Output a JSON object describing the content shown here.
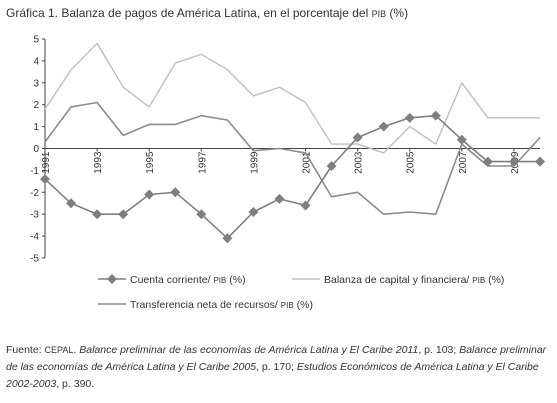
{
  "title": {
    "prefix": "Gráfica 1. Balanza de pagos de América Latina, en el porcentaje del ",
    "pib": "PIB",
    "suffix": " (%)"
  },
  "source": {
    "p1": "Fuente: ",
    "p2": "CEPAL",
    "p3": ". ",
    "p4": "Balance preliminar de las economías de América Latina y El Caribe 2011",
    "p5": ", p. 103;  ",
    "p6": "Balance preliminar de las economías de América Latina y El Caribe 2005",
    "p7": ", p. 170; ",
    "p8": "Estudios Económicos de América Latina y El Caribe 2002-2003",
    "p9": ", p. 390."
  },
  "colors": {
    "cuenta": "#7f7f7f",
    "capital": "#bfbfbf",
    "transferencia": "#8c8c8c",
    "axis": "#444444"
  },
  "chart_data": {
    "type": "line",
    "title": "Gráfica 1. Balanza de pagos de América Latina, en el porcentaje del PIB (%)",
    "xlabel": "",
    "ylabel": "",
    "ylim": [
      -5,
      5
    ],
    "yticks": [
      "5",
      "4",
      "3",
      "2",
      "1",
      "0",
      "-1",
      "-2",
      "-3",
      "-4",
      "-5"
    ],
    "x": [
      1991,
      1992,
      1993,
      1994,
      1995,
      1996,
      1997,
      1998,
      1999,
      2000,
      2001,
      2002,
      2003,
      2004,
      2005,
      2006,
      2007,
      2008,
      2009,
      2010
    ],
    "xticks": [
      "1991",
      "1993",
      "1995",
      "1997",
      "1999",
      "2001",
      "2003",
      "2005",
      "2007",
      "2009"
    ],
    "grid": false,
    "legend": "bottom",
    "series": [
      {
        "name": "Cuenta corriente/ PIB (%)",
        "legend_main": "Cuenta corriente/ ",
        "legend_sc": "PIB",
        "legend_tail": " (%)",
        "marker": "diamond",
        "values": [
          -1.4,
          -2.5,
          -3.0,
          -3.0,
          -2.1,
          -2.0,
          -3.0,
          -4.1,
          -2.9,
          -2.3,
          -2.6,
          -0.8,
          0.5,
          1.0,
          1.4,
          1.5,
          0.4,
          -0.6,
          -0.6,
          -0.6
        ]
      },
      {
        "name": "Balanza de capital y financiera/ PIB (%)",
        "legend_main": "Balanza de capital y financiera/ ",
        "legend_sc": "PIB",
        "legend_tail": " (%)",
        "marker": "none",
        "values": [
          1.8,
          3.6,
          4.8,
          2.8,
          1.9,
          3.9,
          4.3,
          3.6,
          2.4,
          2.8,
          2.1,
          0.2,
          0.2,
          -0.2,
          1.0,
          0.2,
          3.0,
          1.4,
          1.4,
          1.4
        ]
      },
      {
        "name": "Transferencia neta de recursos/ PIB (%)",
        "legend_main": "Transferencia neta de recursos/ ",
        "legend_sc": "PIB",
        "legend_tail": " (%)",
        "marker": "none",
        "values": [
          0.3,
          1.9,
          2.1,
          0.6,
          1.1,
          1.1,
          1.5,
          1.3,
          -0.1,
          0.0,
          -0.2,
          -2.2,
          -2.0,
          -3.0,
          -2.9,
          -3.0,
          0.2,
          -0.8,
          -0.8,
          0.5
        ]
      }
    ]
  }
}
